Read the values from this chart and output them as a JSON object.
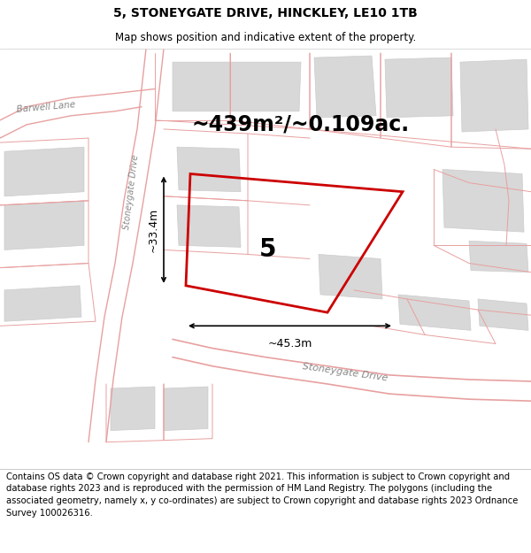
{
  "title_line1": "5, STONEYGATE DRIVE, HINCKLEY, LE10 1TB",
  "title_line2": "Map shows position and indicative extent of the property.",
  "area_text": "~439m²/~0.109ac.",
  "property_number": "5",
  "dim_width": "~45.3m",
  "dim_height": "~33.4m",
  "footer": "Contains OS data © Crown copyright and database right 2021. This information is subject to Crown copyright and database rights 2023 and is reproduced with the permission of HM Land Registry. The polygons (including the associated geometry, namely x, y co-ordinates) are subject to Crown copyright and database rights 2023 Ordnance Survey 100026316.",
  "map_bg": "#ffffff",
  "property_poly_color": "#cc0000",
  "road_line_color": "#e8a0a0",
  "building_color": "#d8d8d8",
  "title_fontsize": 10,
  "subtitle_fontsize": 8.5,
  "footer_fontsize": 7.2,
  "area_fontsize": 17,
  "number_fontsize": 20,
  "dim_fontsize": 9,
  "label_barwell": "Barwell Lane",
  "label_stoneygate_left": "Stoneygate Drive",
  "label_stoneygate_bottom": "Stoneygate Drive"
}
